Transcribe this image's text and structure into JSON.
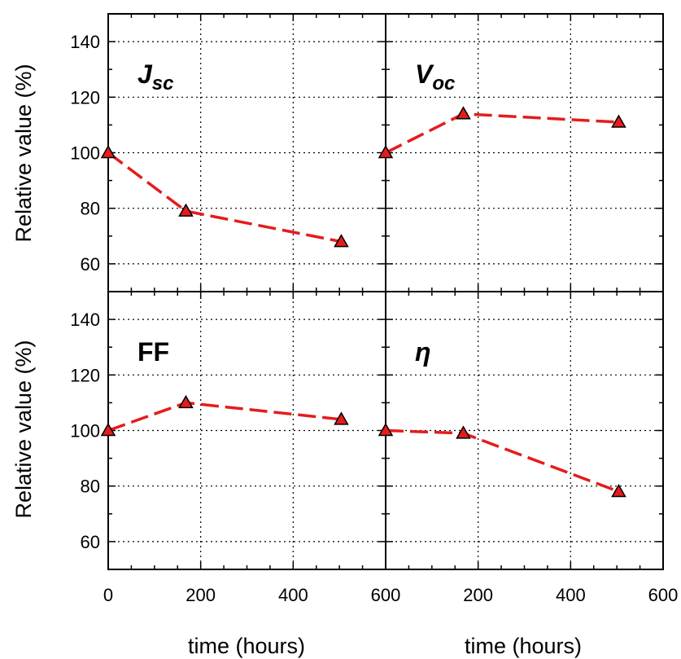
{
  "chart_data": {
    "type": "line",
    "layout": "2x2 grid, shared axes",
    "xlabel": "time (hours)",
    "ylabel": "Relative value (%)",
    "xlim": [
      0,
      600
    ],
    "ylim": [
      50,
      150
    ],
    "x_ticks": [
      0,
      200,
      400,
      600
    ],
    "y_ticks": [
      60,
      80,
      100,
      120,
      140
    ],
    "x_tick_labels_bottom": [
      "0",
      "200",
      "400",
      "600",
      "200",
      "400",
      "600"
    ],
    "grid": true,
    "line_color": "#e51c1c",
    "marker": "triangle",
    "marker_color": "#e51c1c",
    "panels": [
      {
        "label": "J",
        "label_sub": "sc",
        "italic": true,
        "x": [
          0,
          168,
          504
        ],
        "y": [
          100,
          79,
          68
        ]
      },
      {
        "label": "V",
        "label_sub": "oc",
        "italic": true,
        "x": [
          0,
          168,
          504
        ],
        "y": [
          100,
          114,
          111
        ]
      },
      {
        "label": "FF",
        "label_sub": "",
        "italic": false,
        "x": [
          0,
          168,
          504
        ],
        "y": [
          100,
          110,
          104
        ]
      },
      {
        "label": "η",
        "label_sub": "",
        "italic": true,
        "x": [
          0,
          168,
          504
        ],
        "y": [
          100,
          99,
          78
        ]
      }
    ]
  }
}
